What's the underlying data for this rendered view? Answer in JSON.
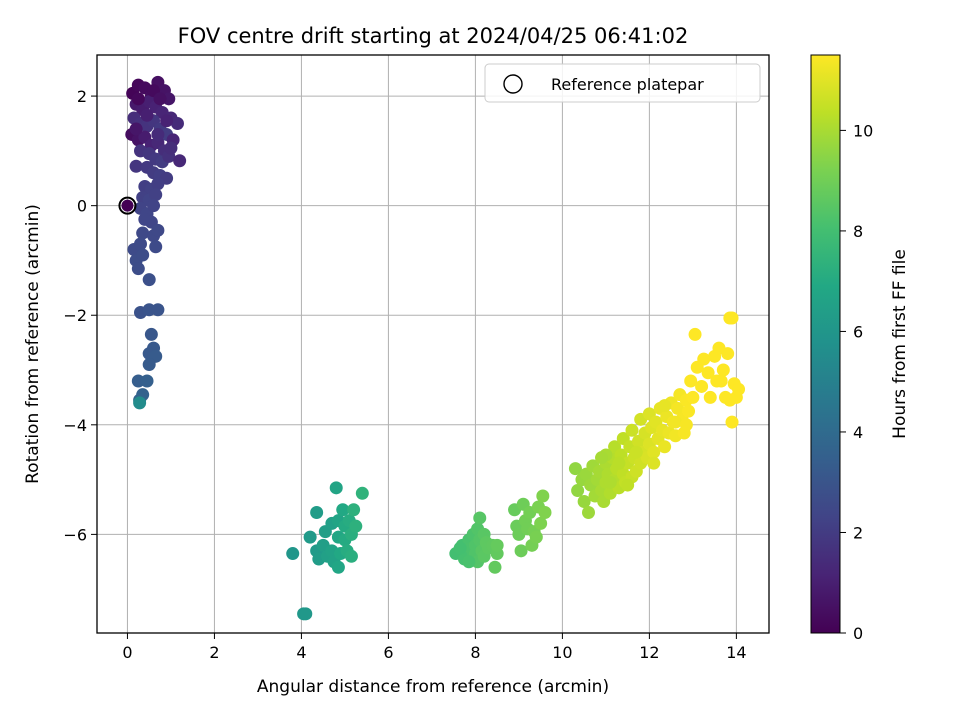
{
  "chart_data": {
    "type": "scatter",
    "title": "FOV centre drift starting at 2024/04/25 06:41:02",
    "xlabel": "Angular distance from reference (arcmin)",
    "ylabel": "Rotation from reference (arcmin)",
    "xlim": [
      -0.7,
      14.75
    ],
    "ylim": [
      -7.8,
      2.75
    ],
    "xticks": [
      0,
      2,
      4,
      6,
      8,
      10,
      12,
      14
    ],
    "yticks": [
      -6,
      -4,
      -2,
      0,
      2
    ],
    "grid": true,
    "legend": {
      "position": "upper right",
      "entries": [
        "Reference platepar"
      ]
    },
    "reference_point": {
      "x": 0,
      "y": 0
    },
    "colorbar": {
      "label": "Hours from first FF file",
      "colormap": "viridis",
      "range": [
        0,
        11.5
      ],
      "ticks": [
        0,
        2,
        4,
        6,
        8,
        10
      ]
    },
    "series": [
      {
        "values": [
          [
            0.12,
            2.05,
            0.1
          ],
          [
            0.25,
            2.2,
            0.2
          ],
          [
            0.4,
            2.15,
            0.3
          ],
          [
            0.55,
            2.0,
            0.4
          ],
          [
            0.7,
            2.25,
            0.5
          ],
          [
            0.85,
            2.1,
            0.6
          ],
          [
            0.95,
            1.95,
            0.7
          ],
          [
            0.2,
            1.85,
            0.8
          ],
          [
            0.35,
            1.75,
            0.9
          ],
          [
            0.5,
            1.9,
            1.0
          ],
          [
            0.65,
            1.8,
            1.1
          ],
          [
            0.8,
            1.7,
            1.2
          ],
          [
            1.0,
            1.6,
            1.3
          ],
          [
            1.15,
            1.5,
            1.4
          ],
          [
            0.15,
            1.6,
            1.5
          ],
          [
            0.3,
            1.5,
            1.6
          ],
          [
            0.45,
            1.45,
            1.7
          ],
          [
            0.6,
            1.55,
            1.8
          ],
          [
            0.75,
            1.4,
            1.9
          ],
          [
            0.9,
            1.3,
            2.0
          ],
          [
            0.1,
            1.3,
            0.4
          ],
          [
            0.25,
            1.2,
            0.6
          ],
          [
            0.4,
            1.25,
            0.9
          ],
          [
            0.55,
            1.1,
            1.1
          ],
          [
            0.7,
            1.15,
            1.3
          ],
          [
            0.85,
            1.0,
            1.5
          ],
          [
            1.05,
            1.2,
            1.2
          ],
          [
            0.3,
            1.0,
            1.7
          ],
          [
            0.5,
            0.95,
            1.8
          ],
          [
            0.65,
            0.85,
            1.9
          ],
          [
            0.8,
            0.8,
            2.0
          ],
          [
            0.95,
            0.9,
            1.6
          ],
          [
            1.2,
            0.82,
            1.3
          ],
          [
            0.2,
            0.72,
            1.8
          ],
          [
            0.45,
            0.7,
            1.9
          ],
          [
            0.6,
            0.6,
            2.0
          ],
          [
            0.75,
            0.55,
            2.1
          ],
          [
            0.9,
            0.5,
            2.0
          ],
          [
            0.4,
            0.35,
            2.1
          ],
          [
            0.55,
            0.3,
            2.2
          ],
          [
            0.7,
            0.4,
            2.1
          ],
          [
            0.35,
            0.15,
            2.2
          ],
          [
            0.5,
            0.1,
            2.3
          ],
          [
            0.65,
            0.2,
            2.2
          ],
          [
            0.3,
            -0.05,
            2.3
          ],
          [
            0.45,
            -0.15,
            2.4
          ],
          [
            0.6,
            0.0,
            2.3
          ],
          [
            0.4,
            -0.25,
            2.4
          ],
          [
            0.55,
            -0.3,
            2.4
          ],
          [
            0.35,
            -0.5,
            2.5
          ],
          [
            0.6,
            -0.55,
            2.5
          ],
          [
            0.7,
            -0.45,
            2.5
          ],
          [
            0.15,
            -0.8,
            2.6
          ],
          [
            0.3,
            -0.7,
            2.6
          ],
          [
            0.65,
            -0.75,
            2.6
          ],
          [
            0.2,
            -1.0,
            2.7
          ],
          [
            0.35,
            -0.9,
            2.7
          ],
          [
            0.25,
            -1.15,
            2.7
          ],
          [
            0.5,
            -1.35,
            2.8
          ],
          [
            0.3,
            -1.95,
            2.9
          ],
          [
            0.5,
            -1.9,
            3.0
          ],
          [
            0.7,
            -1.9,
            3.0
          ],
          [
            0.55,
            -2.35,
            3.1
          ],
          [
            0.6,
            -2.6,
            3.2
          ],
          [
            0.5,
            -2.7,
            3.2
          ],
          [
            0.65,
            -2.75,
            3.3
          ],
          [
            0.5,
            -2.9,
            3.3
          ],
          [
            0.25,
            -3.2,
            3.4
          ],
          [
            0.45,
            -3.2,
            3.5
          ],
          [
            0.35,
            -3.45,
            3.6
          ],
          [
            0.28,
            -3.55,
            3.7
          ],
          [
            0.28,
            -3.6,
            5.5
          ],
          [
            0.25,
            1.95,
            0.2
          ],
          [
            0.6,
            2.1,
            0.3
          ],
          [
            0.75,
            1.95,
            0.5
          ],
          [
            0.45,
            1.65,
            1.0
          ],
          [
            0.9,
            1.55,
            1.1
          ],
          [
            0.7,
            1.3,
            1.4
          ],
          [
            0.2,
            1.4,
            0.7
          ],
          [
            1.0,
            1.05,
            1.5
          ]
        ]
      },
      {
        "values": [
          [
            3.8,
            -6.35,
            6.0
          ],
          [
            4.05,
            -7.45,
            6.1
          ],
          [
            4.1,
            -7.45,
            6.1
          ],
          [
            4.2,
            -6.05,
            6.2
          ],
          [
            4.35,
            -6.3,
            6.2
          ],
          [
            4.35,
            -5.6,
            6.3
          ],
          [
            4.4,
            -6.45,
            6.3
          ],
          [
            4.5,
            -6.2,
            6.4
          ],
          [
            4.55,
            -5.95,
            6.4
          ],
          [
            4.6,
            -6.4,
            6.5
          ],
          [
            4.7,
            -5.8,
            6.5
          ],
          [
            4.7,
            -6.3,
            6.6
          ],
          [
            4.75,
            -6.5,
            6.6
          ],
          [
            4.8,
            -5.15,
            6.7
          ],
          [
            4.85,
            -5.75,
            6.7
          ],
          [
            4.85,
            -6.05,
            6.8
          ],
          [
            4.85,
            -6.6,
            6.8
          ],
          [
            4.9,
            -6.35,
            6.9
          ],
          [
            4.95,
            -5.55,
            6.9
          ],
          [
            5.0,
            -6.1,
            7.0
          ],
          [
            5.0,
            -5.85,
            7.0
          ],
          [
            5.05,
            -6.3,
            7.1
          ],
          [
            5.1,
            -5.75,
            7.1
          ],
          [
            5.15,
            -6.0,
            7.2
          ],
          [
            5.15,
            -6.4,
            7.2
          ],
          [
            5.2,
            -5.55,
            7.3
          ],
          [
            5.25,
            -5.85,
            7.3
          ],
          [
            5.4,
            -5.25,
            7.4
          ]
        ]
      },
      {
        "values": [
          [
            7.55,
            -6.35,
            8.0
          ],
          [
            7.7,
            -6.2,
            8.05
          ],
          [
            7.75,
            -6.45,
            8.1
          ],
          [
            7.8,
            -6.3,
            8.1
          ],
          [
            7.85,
            -6.1,
            8.15
          ],
          [
            7.9,
            -6.25,
            8.2
          ],
          [
            7.95,
            -6.4,
            8.2
          ],
          [
            7.95,
            -6.0,
            8.25
          ],
          [
            8.0,
            -6.2,
            8.3
          ],
          [
            8.0,
            -6.35,
            8.3
          ],
          [
            8.05,
            -5.9,
            8.35
          ],
          [
            8.05,
            -6.5,
            8.4
          ],
          [
            8.1,
            -6.1,
            8.4
          ],
          [
            8.1,
            -5.7,
            8.45
          ],
          [
            8.15,
            -6.3,
            8.5
          ],
          [
            8.2,
            -6.0,
            8.5
          ],
          [
            8.2,
            -6.4,
            8.55
          ],
          [
            8.25,
            -6.15,
            8.6
          ],
          [
            8.3,
            -6.25,
            8.6
          ],
          [
            8.4,
            -6.2,
            8.65
          ],
          [
            8.45,
            -6.6,
            8.7
          ],
          [
            8.5,
            -6.35,
            8.7
          ],
          [
            8.5,
            -6.2,
            8.75
          ],
          [
            8.9,
            -5.55,
            8.8
          ],
          [
            8.95,
            -5.85,
            8.85
          ],
          [
            9.0,
            -6.0,
            8.9
          ],
          [
            9.05,
            -6.3,
            8.9
          ],
          [
            9.1,
            -5.45,
            8.95
          ],
          [
            9.15,
            -5.75,
            9.0
          ],
          [
            9.2,
            -5.9,
            9.0
          ],
          [
            9.25,
            -5.6,
            9.05
          ],
          [
            9.3,
            -6.2,
            9.1
          ],
          [
            9.35,
            -5.95,
            9.1
          ],
          [
            9.4,
            -6.05,
            9.15
          ],
          [
            9.45,
            -5.5,
            9.2
          ],
          [
            9.5,
            -5.8,
            9.25
          ],
          [
            9.55,
            -5.3,
            9.3
          ],
          [
            9.6,
            -5.6,
            9.3
          ],
          [
            7.65,
            -6.25,
            8.05
          ],
          [
            7.85,
            -6.5,
            8.15
          ]
        ]
      },
      {
        "values": [
          [
            10.3,
            -4.8,
            9.6
          ],
          [
            10.35,
            -5.2,
            9.6
          ],
          [
            10.45,
            -5.0,
            9.7
          ],
          [
            10.5,
            -5.4,
            9.7
          ],
          [
            10.55,
            -4.9,
            9.75
          ],
          [
            10.6,
            -5.6,
            9.8
          ],
          [
            10.65,
            -5.1,
            9.8
          ],
          [
            10.7,
            -4.75,
            9.85
          ],
          [
            10.75,
            -5.3,
            9.9
          ],
          [
            10.8,
            -5.0,
            9.9
          ],
          [
            10.85,
            -4.85,
            9.95
          ],
          [
            10.9,
            -5.2,
            10.0
          ],
          [
            10.95,
            -5.4,
            10.0
          ],
          [
            11.0,
            -4.7,
            10.05
          ],
          [
            11.0,
            -5.05,
            10.1
          ],
          [
            11.05,
            -4.9,
            10.1
          ],
          [
            11.1,
            -5.25,
            10.15
          ],
          [
            11.15,
            -4.6,
            10.2
          ],
          [
            11.2,
            -5.0,
            10.2
          ],
          [
            11.2,
            -4.4,
            10.25
          ],
          [
            11.25,
            -4.8,
            10.3
          ],
          [
            11.3,
            -5.15,
            10.3
          ],
          [
            11.35,
            -4.55,
            10.35
          ],
          [
            11.4,
            -4.9,
            10.4
          ],
          [
            11.4,
            -4.25,
            10.4
          ],
          [
            11.45,
            -5.05,
            10.45
          ],
          [
            11.5,
            -4.7,
            10.5
          ],
          [
            11.55,
            -4.4,
            10.5
          ],
          [
            11.6,
            -4.95,
            10.55
          ],
          [
            11.6,
            -4.1,
            10.6
          ],
          [
            11.65,
            -4.6,
            10.6
          ],
          [
            11.7,
            -4.85,
            10.65
          ],
          [
            11.75,
            -4.3,
            10.7
          ],
          [
            11.8,
            -4.7,
            10.7
          ],
          [
            11.8,
            -3.9,
            10.75
          ],
          [
            11.85,
            -4.5,
            10.8
          ],
          [
            11.9,
            -4.15,
            10.8
          ],
          [
            11.95,
            -4.6,
            10.85
          ],
          [
            12.0,
            -3.8,
            10.9
          ],
          [
            12.0,
            -4.35,
            10.9
          ],
          [
            12.05,
            -4.05,
            10.95
          ],
          [
            12.1,
            -4.5,
            11.0
          ],
          [
            12.15,
            -3.95,
            11.0
          ],
          [
            12.2,
            -4.25,
            11.05
          ],
          [
            12.25,
            -3.7,
            11.1
          ],
          [
            12.3,
            -4.1,
            11.1
          ],
          [
            12.35,
            -4.4,
            11.15
          ],
          [
            12.4,
            -3.85,
            11.2
          ],
          [
            12.45,
            -4.15,
            11.2
          ],
          [
            12.5,
            -3.6,
            11.25
          ],
          [
            12.55,
            -3.95,
            11.3
          ],
          [
            12.6,
            -4.2,
            11.3
          ],
          [
            12.65,
            -3.7,
            11.35
          ],
          [
            12.7,
            -3.45,
            11.35
          ],
          [
            12.75,
            -3.9,
            11.4
          ],
          [
            12.8,
            -4.15,
            11.4
          ],
          [
            12.85,
            -3.55,
            11.45
          ],
          [
            12.9,
            -3.75,
            11.45
          ],
          [
            12.95,
            -3.2,
            11.5
          ],
          [
            13.0,
            -3.5,
            11.5
          ],
          [
            13.05,
            -2.35,
            11.5
          ],
          [
            13.1,
            -2.95,
            11.5
          ],
          [
            13.2,
            -3.3,
            11.5
          ],
          [
            13.25,
            -2.8,
            11.5
          ],
          [
            13.35,
            -3.05,
            11.5
          ],
          [
            13.4,
            -3.5,
            11.5
          ],
          [
            13.5,
            -2.75,
            11.5
          ],
          [
            13.55,
            -3.2,
            11.5
          ],
          [
            13.6,
            -2.6,
            11.5
          ],
          [
            13.7,
            -3.0,
            11.5
          ],
          [
            13.75,
            -3.5,
            11.5
          ],
          [
            13.8,
            -2.7,
            11.5
          ],
          [
            13.85,
            -3.55,
            11.5
          ],
          [
            13.9,
            -2.05,
            11.5
          ],
          [
            13.95,
            -3.25,
            11.5
          ],
          [
            13.9,
            -3.95,
            11.5
          ],
          [
            14.0,
            -3.5,
            11.5
          ],
          [
            14.05,
            -3.35,
            11.5
          ],
          [
            13.85,
            -2.05,
            11.5
          ],
          [
            13.65,
            -3.2,
            11.5
          ],
          [
            11.0,
            -4.55,
            10.0
          ],
          [
            11.3,
            -4.7,
            10.3
          ],
          [
            11.5,
            -5.1,
            10.4
          ],
          [
            11.7,
            -4.5,
            10.6
          ],
          [
            12.1,
            -4.7,
            10.9
          ],
          [
            12.35,
            -3.65,
            11.1
          ],
          [
            12.6,
            -3.95,
            11.3
          ],
          [
            12.85,
            -4.0,
            11.4
          ],
          [
            11.1,
            -5.05,
            10.1
          ],
          [
            10.9,
            -4.6,
            9.95
          ]
        ]
      }
    ]
  }
}
